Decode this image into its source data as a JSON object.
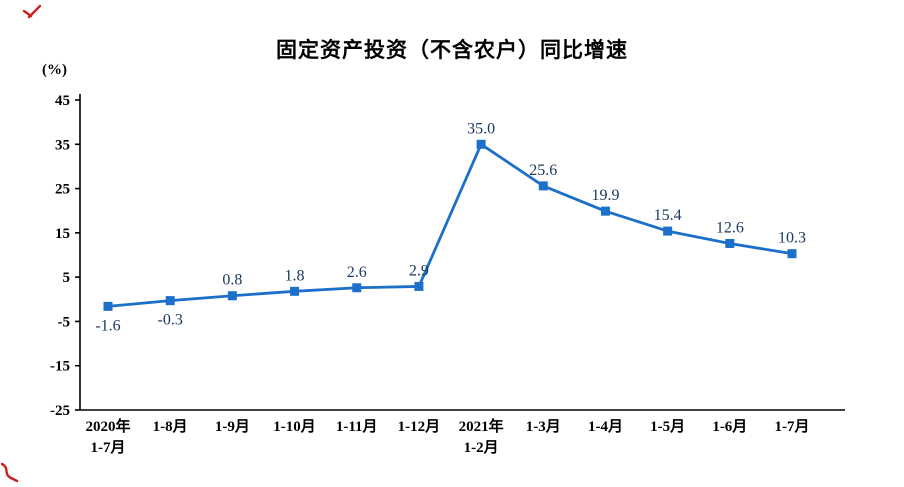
{
  "page": {
    "background": "#ffffff"
  },
  "chart_data": {
    "type": "line",
    "title": "固定资产投资（不含农户）同比增速",
    "unit_label": "(%)",
    "categories": [
      "2020年\n1-7月",
      "1-8月",
      "1-9月",
      "1-10月",
      "1-11月",
      "1-12月",
      "2021年\n1-2月",
      "1-3月",
      "1-4月",
      "1-5月",
      "1-6月",
      "1-7月"
    ],
    "values": [
      -1.6,
      -0.3,
      0.8,
      1.8,
      2.6,
      2.9,
      35.0,
      25.6,
      19.9,
      15.4,
      12.6,
      10.3
    ],
    "value_labels": [
      "-1.6",
      "-0.3",
      "0.8",
      "1.8",
      "2.6",
      "2.9",
      "35.0",
      "25.6",
      "19.9",
      "15.4",
      "12.6",
      "10.3"
    ],
    "ylim": [
      -25,
      45
    ],
    "yticks": [
      45,
      35,
      25,
      15,
      5,
      -5,
      -15,
      -25
    ],
    "grid": false,
    "legend": "none",
    "marker": "square",
    "line_color": "#1d70c9",
    "label_color": "#17375e",
    "axis_color": "#000000"
  }
}
